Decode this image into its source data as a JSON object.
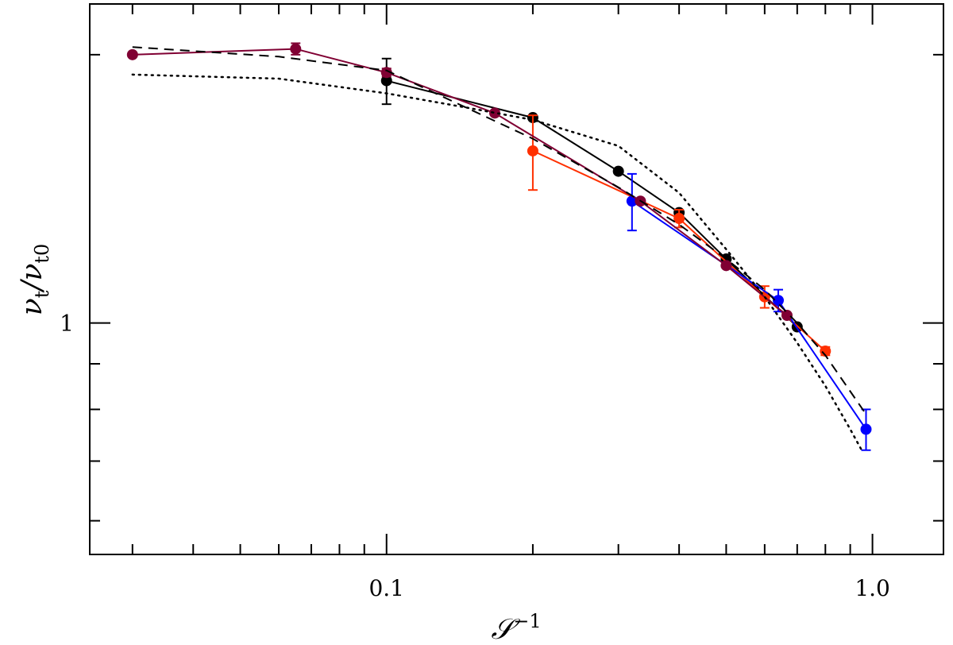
{
  "chart_data": {
    "type": "line",
    "title": "",
    "xlabel": "𝒮",
    "xlabel_sup": "−1",
    "ylabel": "ν",
    "ylabel_sub1": "t",
    "ylabel_mid": "/ν",
    "ylabel_sub2": "t0",
    "x_scale": "log",
    "y_scale": "log",
    "xlim": [
      0.0245,
      1.4
    ],
    "ylim": [
      0.55,
      2.28
    ],
    "x_ticks_labeled": [
      {
        "value": 0.1,
        "label": "0.1"
      },
      {
        "value": 1.0,
        "label": "1.0"
      }
    ],
    "y_ticks_labeled": [
      {
        "value": 1,
        "label": "1"
      }
    ],
    "x_minor_ticks": [
      0.03,
      0.04,
      0.05,
      0.06,
      0.07,
      0.08,
      0.09,
      0.2,
      0.3,
      0.4,
      0.5,
      0.6,
      0.7,
      0.8,
      0.9
    ],
    "y_minor_ticks": [
      0.6,
      0.7,
      0.8,
      0.9,
      2.0
    ],
    "grid": false,
    "legend": "none",
    "series": [
      {
        "color": "#000000",
        "style": "solid-markers",
        "x": [
          0.1,
          0.2,
          0.3,
          0.4,
          0.5,
          0.7
        ],
        "y": [
          1.87,
          1.7,
          1.48,
          1.33,
          1.18,
          0.99
        ],
        "err": [
          0.11,
          null,
          null,
          null,
          null,
          null
        ]
      },
      {
        "color": "#ff3000",
        "style": "solid-markers",
        "x": [
          0.2,
          0.4,
          0.6,
          0.8
        ],
        "y": [
          1.56,
          1.31,
          1.07,
          0.93
        ],
        "err": [
          0.15,
          0.03,
          0.03,
          0.01
        ]
      },
      {
        "color": "#0000ff",
        "style": "solid-markers",
        "x": [
          0.32,
          0.64,
          0.97
        ],
        "y": [
          1.37,
          1.06,
          0.76
        ],
        "err": [
          0.1,
          0.03,
          0.04
        ]
      },
      {
        "color": "#800033",
        "style": "solid-markers",
        "x": [
          0.03,
          0.065,
          0.1,
          0.167,
          0.333,
          0.5,
          0.667
        ],
        "y": [
          2.0,
          2.03,
          1.91,
          1.72,
          1.37,
          1.16,
          1.02
        ],
        "err": [
          null,
          0.03,
          0.02,
          null,
          null,
          null,
          null
        ]
      },
      {
        "color": "#000000",
        "style": "dashed",
        "x": [
          0.03,
          0.06,
          0.1,
          0.2,
          0.3,
          0.4,
          0.5,
          0.6,
          0.7,
          0.8,
          0.97
        ],
        "y": [
          2.04,
          1.99,
          1.92,
          1.61,
          1.42,
          1.29,
          1.18,
          1.09,
          1.0,
          0.92,
          0.79
        ]
      },
      {
        "color": "#000000",
        "style": "dotted",
        "x": [
          0.03,
          0.06,
          0.1,
          0.15,
          0.2,
          0.3,
          0.4,
          0.5,
          0.6,
          0.7,
          0.8,
          0.9,
          0.95
        ],
        "y": [
          1.9,
          1.88,
          1.81,
          1.74,
          1.69,
          1.58,
          1.4,
          1.21,
          1.07,
          0.95,
          0.85,
          0.76,
          0.72
        ]
      }
    ]
  }
}
